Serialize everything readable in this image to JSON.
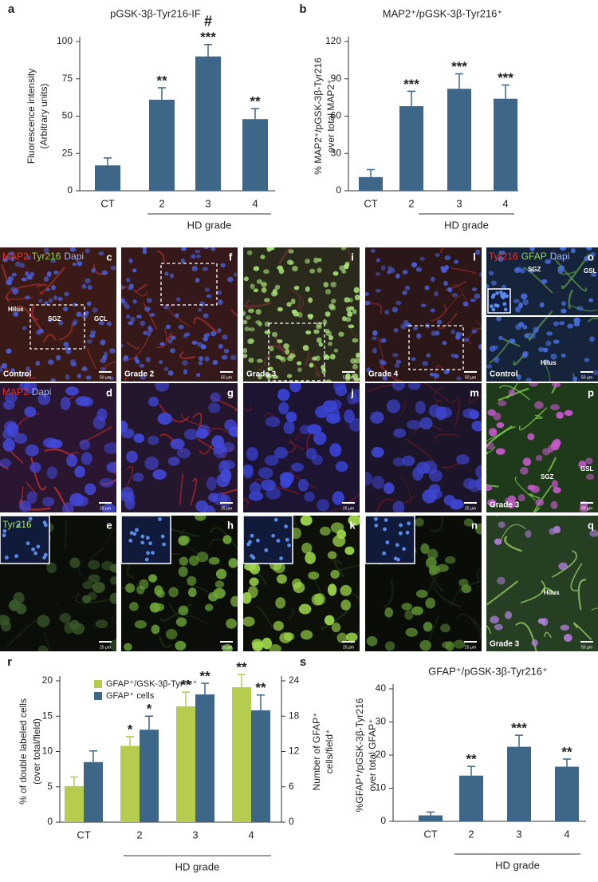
{
  "chart_data": [
    {
      "type": "bar",
      "panel_label": "a",
      "title": "pGSK-3β-Tyr216-IF",
      "ylabel": [
        "Fluorescence intensity",
        "(Arbitrary units)"
      ],
      "categories": [
        "CT",
        "2",
        "3",
        "4"
      ],
      "group_label": "HD grade",
      "values": [
        17,
        61,
        90,
        48
      ],
      "errors": [
        5,
        8,
        8,
        7
      ],
      "sig_labels": [
        null,
        "**",
        "***",
        "**"
      ],
      "hash_labels": [
        null,
        null,
        "#",
        null
      ],
      "color": "#3e6689",
      "ylim": [
        0,
        100
      ],
      "yticks": [
        0,
        25,
        50,
        75,
        100
      ]
    },
    {
      "type": "bar",
      "panel_label": "b",
      "title": "MAP2⁺/pGSK-3β-Tyr216⁺",
      "ylabel": [
        "% MAP2⁺/pGSK-3β-Tyr216",
        "over total MAP2⁺"
      ],
      "categories": [
        "CT",
        "2",
        "3",
        "4"
      ],
      "group_label": "HD grade",
      "values": [
        11,
        68,
        82,
        74
      ],
      "errors": [
        6,
        12,
        12,
        11
      ],
      "sig_labels": [
        null,
        "***",
        "***",
        "***"
      ],
      "color": "#3e6689",
      "ylim": [
        0,
        120
      ],
      "yticks": [
        0,
        30,
        60,
        90,
        120
      ]
    },
    {
      "type": "bar",
      "panel_label": "r",
      "ylabel": [
        "% of double labeled cells",
        "(over total/field)"
      ],
      "y2label": [
        "Number of GFAP⁺",
        "cells/field⁺"
      ],
      "categories": [
        "CT",
        "2",
        "3",
        "4"
      ],
      "group_label": "HD grade",
      "series": [
        {
          "name": "GFAP⁺/GSK-3β-Tyr²¹⁸⁺",
          "color": "#b5cc4e",
          "values": [
            5.1,
            10.8,
            16.4,
            19.1
          ],
          "errors": [
            1.3,
            1.3,
            2,
            1.8
          ],
          "sig_labels": [
            null,
            "*",
            "**",
            "**"
          ]
        },
        {
          "name": "GFAP⁺ cells",
          "color": "#3e6689",
          "axis": "y2",
          "values": [
            10.2,
            15.7,
            21.7,
            19.0
          ],
          "errors": [
            1.9,
            2.3,
            1.9,
            2.6
          ],
          "sig_labels": [
            null,
            "*",
            "**",
            "**"
          ]
        }
      ],
      "ylim": [
        0,
        20
      ],
      "yticks": [
        0,
        5,
        10,
        15,
        20
      ],
      "y2lim": [
        0,
        24
      ],
      "y2ticks": [
        0,
        6,
        12,
        18,
        24
      ]
    },
    {
      "type": "bar",
      "panel_label": "s",
      "title": "GFAP⁺/pGSK-3β-Tyr216⁺",
      "ylabel": [
        "%GFAP⁺/pGSK-3β-Tyr216",
        "over total GFAP⁺"
      ],
      "categories": [
        "CT",
        "2",
        "3",
        "4"
      ],
      "group_label": "HD grade",
      "values": [
        1.8,
        13.8,
        22.5,
        16.5
      ],
      "errors": [
        1,
        2.8,
        3.5,
        2.3
      ],
      "sig_labels": [
        null,
        "**",
        "***",
        "**"
      ],
      "color": "#3e6689",
      "ylim": [
        0,
        40
      ],
      "yticks": [
        0,
        10,
        20,
        30,
        40
      ]
    }
  ],
  "micrographs": {
    "panels": [
      {
        "letter": "c",
        "caption": "Control",
        "scale": "50 µm",
        "stains": [
          {
            "text": "MAP2",
            "color": "#e8322b"
          },
          {
            "text": "Tyr216",
            "color": "#8fd35a"
          },
          {
            "text": "Dapi",
            "color": "#9fb6ff"
          }
        ],
        "labels": [
          "Hilus",
          "SGZ",
          "GCL"
        ]
      },
      {
        "letter": "f",
        "caption": "Grade 2",
        "scale": "50 µm"
      },
      {
        "letter": "i",
        "caption": "Grade 3",
        "scale": "50 µm"
      },
      {
        "letter": "l",
        "caption": "Grade 4",
        "scale": "50 µm"
      },
      {
        "letter": "o",
        "caption": "Control",
        "scale": "50 µm",
        "stains": [
          {
            "text": "Tyr216",
            "color": "#e8322b"
          },
          {
            "text": "GFAP",
            "color": "#8fd35a"
          },
          {
            "text": "Dapi",
            "color": "#9fb6ff"
          }
        ],
        "labels": [
          "SGZ",
          "GSL",
          "Hilus"
        ]
      },
      {
        "letter": "d",
        "scale": "25 µm",
        "stains": [
          {
            "text": "MAP2",
            "color": "#e8322b"
          },
          {
            "text": "Dapi",
            "color": "#9fb6ff"
          }
        ]
      },
      {
        "letter": "g",
        "scale": "25 µm"
      },
      {
        "letter": "j",
        "scale": "25 µm"
      },
      {
        "letter": "m",
        "scale": "25 µm"
      },
      {
        "letter": "p",
        "caption": "Grade 3",
        "scale": "50 µm",
        "labels": [
          "GSL",
          "SGZ"
        ]
      },
      {
        "letter": "e",
        "scale": "25 µm",
        "stains": [
          {
            "text": "Tyr216",
            "color": "#a6e060"
          }
        ]
      },
      {
        "letter": "h",
        "scale": "25 µm"
      },
      {
        "letter": "k",
        "scale": "25 µm"
      },
      {
        "letter": "n",
        "scale": "25 µm"
      },
      {
        "letter": "q",
        "caption": "Grade 3",
        "scale": "50 µm",
        "labels": [
          "Hilus"
        ]
      }
    ]
  }
}
